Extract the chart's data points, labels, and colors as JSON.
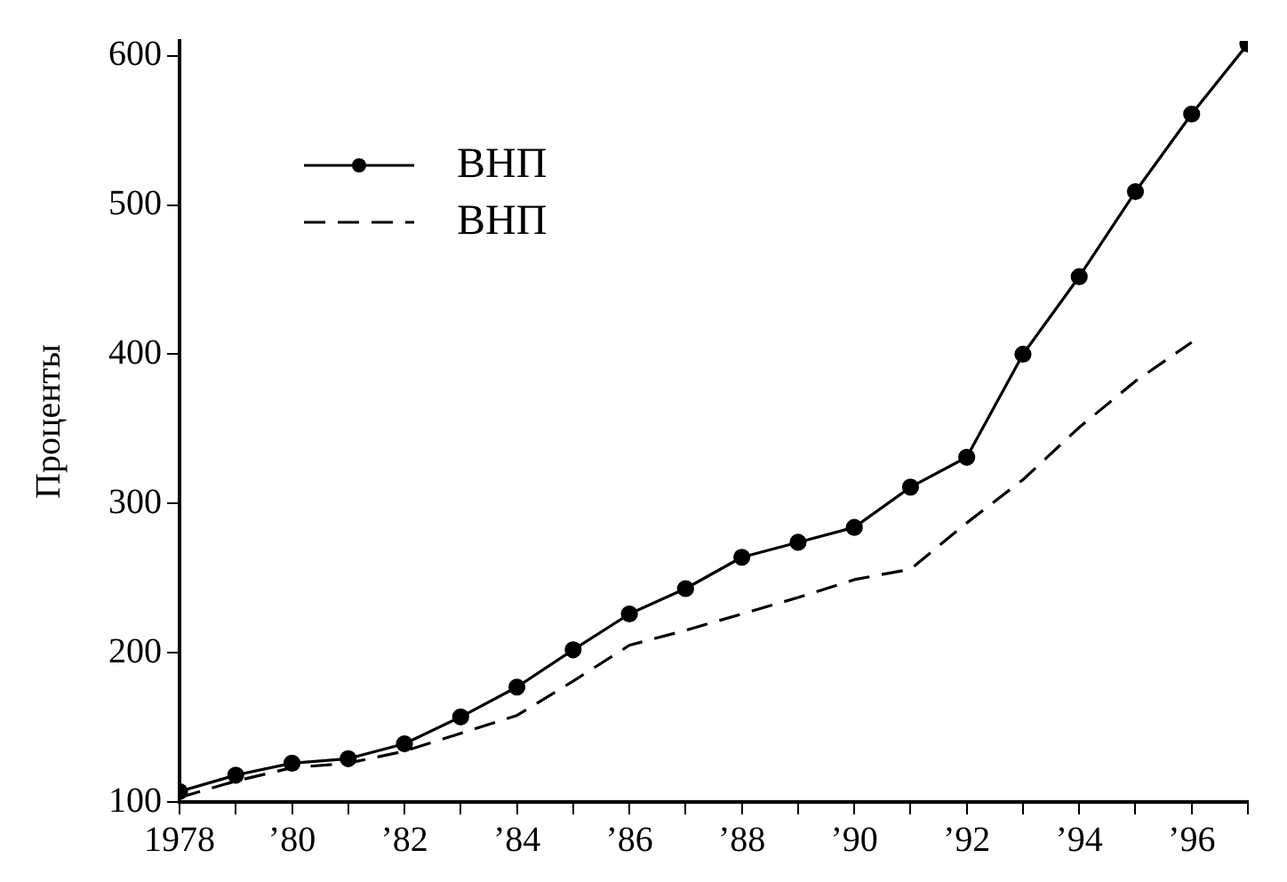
{
  "chart_data": {
    "type": "line",
    "ylabel": "Проценты",
    "x": [
      1978,
      1979,
      1980,
      1981,
      1982,
      1983,
      1984,
      1985,
      1986,
      1987,
      1988,
      1989,
      1990,
      1991,
      1992,
      1993,
      1994,
      1995,
      1996,
      1997
    ],
    "series": [
      {
        "name": "ВНП",
        "color": "#000000",
        "marker": "circle",
        "line_style": "solid",
        "values": [
          107,
          118,
          126,
          129,
          139,
          157,
          177,
          202,
          226,
          243,
          264,
          274,
          284,
          311,
          331,
          400,
          452,
          509,
          561,
          608
        ]
      },
      {
        "name": "ВНП",
        "color": "#000000",
        "marker": "none",
        "line_style": "dashed",
        "values": [
          103,
          114,
          123,
          126,
          134,
          146,
          158,
          181,
          205,
          215,
          226,
          237,
          249,
          256,
          287,
          316,
          351,
          382,
          408,
          null
        ]
      }
    ],
    "xlim": [
      1978,
      1997
    ],
    "xticks": [
      1978,
      {
        "value": 1979,
        "label": null
      },
      {
        "value": 1980,
        "label": "’80"
      },
      {
        "value": 1981,
        "label": null
      },
      {
        "value": 1982,
        "label": "’82"
      },
      {
        "value": 1983,
        "label": null
      },
      {
        "value": 1984,
        "label": "’84"
      },
      {
        "value": 1985,
        "label": null
      },
      {
        "value": 1986,
        "label": "’86"
      },
      {
        "value": 1987,
        "label": null
      },
      {
        "value": 1988,
        "label": "’88"
      },
      {
        "value": 1989,
        "label": null
      },
      {
        "value": 1990,
        "label": "’90"
      },
      {
        "value": 1991,
        "label": null
      },
      {
        "value": 1992,
        "label": "’92"
      },
      {
        "value": 1993,
        "label": null
      },
      {
        "value": 1994,
        "label": "’94"
      },
      {
        "value": 1995,
        "label": null
      },
      {
        "value": 1996,
        "label": "’96"
      },
      {
        "value": 1997,
        "label": null
      }
    ],
    "ylim": [
      100,
      610
    ],
    "yticks": [
      100,
      200,
      300,
      400,
      500,
      600
    ],
    "grid": false,
    "legend": "top left"
  }
}
